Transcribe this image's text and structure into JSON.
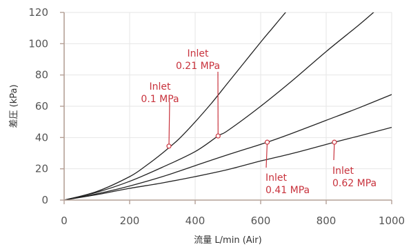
{
  "chart_data": {
    "type": "line",
    "xlabel": "流量 L/min (Air)",
    "ylabel": "差圧 (kPa)",
    "xlim": [
      0,
      1000
    ],
    "ylim": [
      0,
      120
    ],
    "x_ticks": [
      "0",
      "200",
      "400",
      "600",
      "800",
      "1000"
    ],
    "y_ticks": [
      "0",
      "20",
      "40",
      "60",
      "80",
      "100",
      "120"
    ],
    "grid": true,
    "colors": {
      "series": "#222222",
      "annotation": "#c8323c",
      "axis": "#b4a096",
      "grid": "#e6e6e6"
    },
    "series": [
      {
        "x": [
          0,
          100,
          200,
          250,
          300,
          350,
          400,
          450,
          500,
          550,
          600,
          640,
          680
        ],
        "y": [
          0,
          5.5,
          15,
          22,
          30,
          39,
          50,
          62,
          75,
          88,
          101,
          111,
          121
        ]
      },
      {
        "x": [
          0,
          100,
          200,
          300,
          400,
          470,
          500,
          600,
          700,
          800,
          900,
          950
        ],
        "y": [
          0,
          5,
          12,
          21,
          31,
          41,
          44.5,
          60,
          77,
          95,
          112,
          121
        ]
      },
      {
        "x": [
          0,
          100,
          200,
          300,
          400,
          500,
          620,
          700,
          800,
          900,
          1000
        ],
        "y": [
          0,
          4,
          9,
          15,
          22,
          29,
          37,
          43,
          51,
          59,
          67.5
        ]
      },
      {
        "x": [
          0,
          100,
          200,
          300,
          400,
          500,
          600,
          700,
          825,
          900,
          1000
        ],
        "y": [
          0,
          3.5,
          7.5,
          11,
          15,
          19.5,
          25,
          30,
          37,
          41,
          46.5
        ]
      }
    ],
    "annotations": [
      {
        "lines": [
          "Inlet",
          "0.1 MPa"
        ],
        "x": 320,
        "y": 34.5
      },
      {
        "lines": [
          "Inlet",
          "0.21 MPa"
        ],
        "x": 470,
        "y": 41
      },
      {
        "lines": [
          "Inlet",
          "0.41 MPa"
        ],
        "x": 620,
        "y": 37
      },
      {
        "lines": [
          "Inlet",
          "0.62 MPa"
        ],
        "x": 825,
        "y": 37
      }
    ]
  }
}
